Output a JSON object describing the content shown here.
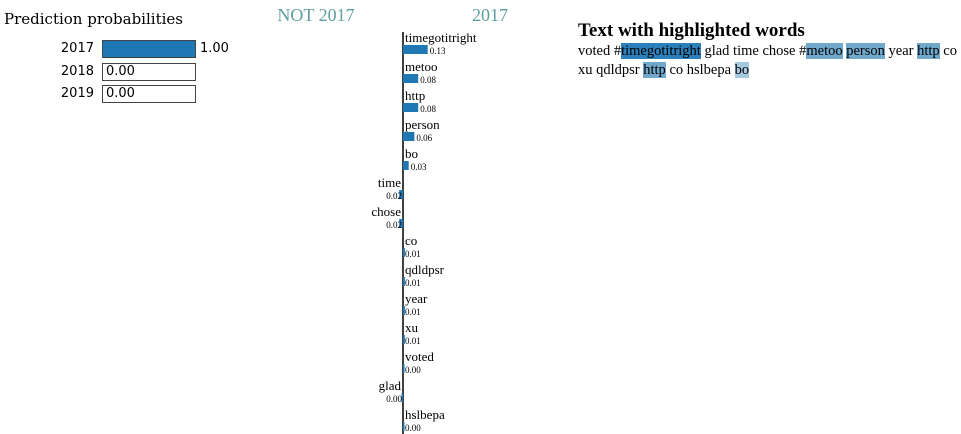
{
  "prediction": {
    "title": "Prediction probabilities",
    "rows": [
      {
        "label": "2017",
        "value": 1.0,
        "text": "1.00"
      },
      {
        "label": "2018",
        "value": 0.0,
        "text": "0.00"
      },
      {
        "label": "2019",
        "value": 0.0,
        "text": "0.00"
      }
    ],
    "bar_color": "#1f77b4"
  },
  "explanation": {
    "negative_title": "NOT 2017",
    "positive_title": "2017",
    "title_color": "#5f9ea0",
    "bar_color": "#1f77b4"
  },
  "chart_data": {
    "type": "bar",
    "orientation": "horizontal",
    "categories": [
      "timegotitright",
      "metoo",
      "http",
      "person",
      "bo",
      "time",
      "chose",
      "co",
      "qdldpsr",
      "year",
      "xu",
      "voted",
      "glad",
      "hslbepa"
    ],
    "values": [
      0.13,
      0.08,
      0.08,
      0.06,
      0.03,
      -0.02,
      -0.02,
      0.01,
      0.01,
      0.01,
      0.01,
      0.0,
      -0.0,
      0.0
    ],
    "value_labels": [
      "0.13",
      "0.08",
      "0.08",
      "0.06",
      "0.03",
      "0.02",
      "0.02",
      "0.01",
      "0.01",
      "0.01",
      "0.01",
      "0.00",
      "0.00",
      "0.00"
    ],
    "negative_class": "NOT 2017",
    "positive_class": "2017"
  },
  "highlighted_text": {
    "title": "Text with highlighted words",
    "tokens": [
      {
        "text": "voted",
        "weight": 0.0
      },
      {
        "text": " #",
        "weight": 0.0
      },
      {
        "text": "timegotitright",
        "weight": 0.13
      },
      {
        "text": " glad time chose #",
        "weight": 0.0
      },
      {
        "text": "metoo",
        "weight": 0.08
      },
      {
        "text": " ",
        "weight": 0.0
      },
      {
        "text": "person",
        "weight": 0.06
      },
      {
        "text": " year ",
        "weight": 0.0
      },
      {
        "text": "http",
        "weight": 0.08
      },
      {
        "text": " co xu qdldpsr ",
        "weight": 0.0
      },
      {
        "text": "http",
        "weight": 0.08
      },
      {
        "text": " co hslbepa ",
        "weight": 0.0
      },
      {
        "text": "bo",
        "weight": 0.03
      }
    ],
    "colors": {
      "strong": "#2b7fba",
      "medium": "#71a9cd",
      "light": "#a6c9e2",
      "faint": "#dbe9f4"
    }
  }
}
